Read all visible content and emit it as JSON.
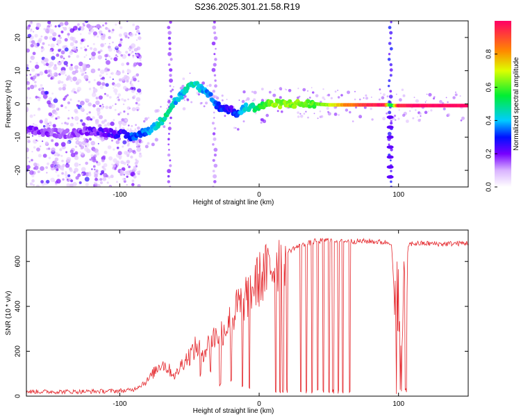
{
  "title": "S236.2025.301.21.58.R19",
  "colors": {
    "snr_line": "#e4262b",
    "axis": "#000000",
    "background": "#ffffff"
  },
  "chart_data": [
    {
      "type": "heatmap",
      "name": "spectrogram",
      "xlabel": "Height of straight line (km)",
      "ylabel": "Frequency (Hz)",
      "xlim": [
        -167,
        150
      ],
      "ylim": [
        -25,
        25
      ],
      "x_ticks": [
        -100,
        0,
        100
      ],
      "x_tick_labels": [
        "-100",
        "0",
        "100"
      ],
      "y_ticks": [
        -20,
        -10,
        0,
        10,
        20
      ],
      "y_tick_labels": [
        "-20",
        "-10",
        "0",
        "10",
        "20"
      ],
      "colorbar": {
        "label": "Normalized spectral amplitude",
        "range": [
          0,
          1
        ],
        "ticks": [
          0.0,
          0.2,
          0.4,
          0.6,
          0.8
        ],
        "tick_labels": [
          "0.0",
          "0.2",
          "0.4",
          "0.6",
          "0.8"
        ]
      },
      "carrier_track": {
        "x": [
          -167,
          -140,
          -120,
          -100,
          -92,
          -85,
          -80,
          -75,
          -70,
          -65,
          -60,
          -55,
          -50,
          -45,
          -40,
          -35,
          -32,
          -28,
          -25,
          -20,
          -15,
          -12,
          -10,
          -5,
          0,
          5,
          10,
          20,
          30,
          40,
          50,
          60,
          70,
          80,
          90,
          94,
          96,
          100,
          110,
          120,
          130,
          150
        ],
        "freq": [
          -8,
          -9,
          -8,
          -9,
          -10,
          -9,
          -8,
          -7,
          -5,
          -2,
          1,
          3,
          5,
          6,
          4,
          3,
          0,
          -1,
          -1,
          -2,
          -3,
          -2,
          -1,
          -1,
          -1,
          0,
          0,
          0,
          0,
          0,
          -0.3,
          -0.3,
          -0.3,
          -0.3,
          -0.3,
          -0.3,
          -0.5,
          -0.5,
          -0.5,
          -0.5,
          -0.5,
          -0.5
        ],
        "amplitude": [
          0.15,
          0.1,
          0.15,
          0.2,
          0.28,
          0.3,
          0.32,
          0.38,
          0.42,
          0.45,
          0.35,
          0.35,
          0.45,
          0.4,
          0.35,
          0.3,
          0.3,
          0.25,
          0.25,
          0.2,
          0.3,
          0.35,
          0.4,
          0.45,
          0.5,
          0.55,
          0.6,
          0.6,
          0.58,
          0.55,
          0.62,
          0.75,
          0.85,
          0.9,
          0.95,
          0.5,
          0.5,
          0.92,
          0.95,
          0.95,
          0.97,
          0.97
        ]
      },
      "noise_region_x": [
        -167,
        -95
      ]
    },
    {
      "type": "line",
      "name": "snr",
      "xlabel": "Height of straight line (km)",
      "ylabel": "SNR (10 * v/v)",
      "xlim": [
        -167,
        150
      ],
      "ylim": [
        0,
        740
      ],
      "x_ticks": [
        -100,
        0,
        100
      ],
      "x_tick_labels": [
        "-100",
        "0",
        "100"
      ],
      "y_ticks": [
        0,
        200,
        400,
        600
      ],
      "y_tick_labels": [
        "0",
        "200",
        "400",
        "600"
      ],
      "series": [
        {
          "name": "SNR",
          "x": [
            -167,
            -150,
            -130,
            -110,
            -95,
            -90,
            -85,
            -80,
            -75,
            -70,
            -65,
            -60,
            -55,
            -50,
            -45,
            -40,
            -35,
            -30,
            -25,
            -20,
            -15,
            -10,
            -5,
            0,
            5,
            10,
            15,
            20,
            25,
            30,
            35,
            40,
            50,
            60,
            70,
            80,
            90,
            95,
            98,
            100,
            103,
            105,
            108,
            110,
            120,
            130,
            140,
            150
          ],
          "values": [
            20,
            20,
            20,
            22,
            25,
            30,
            50,
            70,
            110,
            150,
            120,
            90,
            150,
            180,
            220,
            200,
            240,
            280,
            300,
            340,
            400,
            440,
            480,
            520,
            550,
            580,
            610,
            640,
            660,
            670,
            680,
            690,
            695,
            690,
            690,
            690,
            685,
            685,
            300,
            250,
            300,
            670,
            675,
            680,
            680,
            678,
            680,
            682
          ]
        }
      ],
      "dropouts": [
        {
          "x": -42,
          "min": 80
        },
        {
          "x": -35,
          "min": 100
        },
        {
          "x": -28,
          "min": 40
        },
        {
          "x": -20,
          "min": 60
        },
        {
          "x": -12,
          "min": 30
        },
        {
          "x": -7,
          "min": 20
        },
        {
          "x": 12,
          "min": 15
        },
        {
          "x": 15,
          "min": 10
        },
        {
          "x": 17,
          "min": 10
        },
        {
          "x": 20,
          "min": 15
        },
        {
          "x": 30,
          "min": 10
        },
        {
          "x": 34,
          "min": 10
        },
        {
          "x": 38,
          "min": 10
        },
        {
          "x": 42,
          "min": 10
        },
        {
          "x": 46,
          "min": 10
        },
        {
          "x": 50,
          "min": 10
        },
        {
          "x": 53,
          "min": 10
        },
        {
          "x": 57,
          "min": 10
        },
        {
          "x": 60,
          "min": 10
        },
        {
          "x": 65,
          "min": 10
        }
      ],
      "deep_drop_range_x": [
        97,
        107
      ]
    }
  ]
}
